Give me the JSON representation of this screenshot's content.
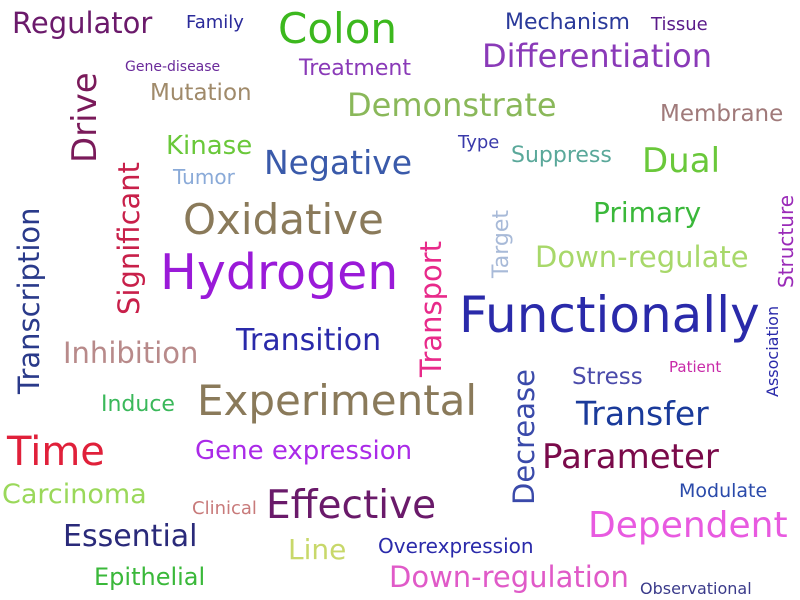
{
  "words": [
    {
      "text": "Regulator",
      "color": "#6b1a6b"
    },
    {
      "text": "Family",
      "color": "#2a2a9a"
    },
    {
      "text": "Colon",
      "color": "#3cb81e"
    },
    {
      "text": "Mechanism",
      "color": "#2a3a9a"
    },
    {
      "text": "Tissue",
      "color": "#5a1a8a"
    },
    {
      "text": "Differentiation",
      "color": "#8a3ab8"
    },
    {
      "text": "Gene-disease",
      "color": "#6a2a9a"
    },
    {
      "text": "Treatment",
      "color": "#8a3ab8"
    },
    {
      "text": "Mutation",
      "color": "#a08a6a"
    },
    {
      "text": "Demonstrate",
      "color": "#8ab85a"
    },
    {
      "text": "Membrane",
      "color": "#a07a7a"
    },
    {
      "text": "Drive",
      "color": "#7a1a5a"
    },
    {
      "text": "Kinase",
      "color": "#6ac83a"
    },
    {
      "text": "Type",
      "color": "#3a3aaa"
    },
    {
      "text": "Suppress",
      "color": "#5aa89a"
    },
    {
      "text": "Dual",
      "color": "#6ac83a"
    },
    {
      "text": "Negative",
      "color": "#3a5aaa"
    },
    {
      "text": "Tumor",
      "color": "#8aaad8"
    },
    {
      "text": "Significant",
      "color": "#c8204a"
    },
    {
      "text": "Target",
      "color": "#a8bad8"
    },
    {
      "text": "Primary",
      "color": "#3ab83a"
    },
    {
      "text": "Structure",
      "color": "#9a2ab8"
    },
    {
      "text": "Transcription",
      "color": "#2a3a8a"
    },
    {
      "text": "Oxidative",
      "color": "#8a7a5a"
    },
    {
      "text": "Down-regulate",
      "color": "#a8d86a"
    },
    {
      "text": "Hydrogen",
      "color": "#9a1ad8"
    },
    {
      "text": "Transport",
      "color": "#e82a8a"
    },
    {
      "text": "Functionally",
      "color": "#2a2aaa"
    },
    {
      "text": "Association",
      "color": "#2a2aaa"
    },
    {
      "text": "Inhibition",
      "color": "#b88a8a"
    },
    {
      "text": "Transition",
      "color": "#2a2aaa"
    },
    {
      "text": "Patient",
      "color": "#c82aa8"
    },
    {
      "text": "Stress",
      "color": "#4a4aaa"
    },
    {
      "text": "Decrease",
      "color": "#3a4aaa"
    },
    {
      "text": "Induce",
      "color": "#3ab85a"
    },
    {
      "text": "Experimental",
      "color": "#8a7a5a"
    },
    {
      "text": "Transfer",
      "color": "#1a3a9a"
    },
    {
      "text": "Time",
      "color": "#e0203a"
    },
    {
      "text": "Gene expression",
      "color": "#aa2ae8"
    },
    {
      "text": "Parameter",
      "color": "#7a0a4a"
    },
    {
      "text": "Carcinoma",
      "color": "#9ad85a"
    },
    {
      "text": "Clinical",
      "color": "#c87a7a"
    },
    {
      "text": "Effective",
      "color": "#6a1a6a"
    },
    {
      "text": "Modulate",
      "color": "#2a4aaa"
    },
    {
      "text": "Essential",
      "color": "#2a2a7a"
    },
    {
      "text": "Dependent",
      "color": "#e85ae0"
    },
    {
      "text": "Line",
      "color": "#c8d86a"
    },
    {
      "text": "Overexpression",
      "color": "#2a2aaa"
    },
    {
      "text": "Epithelial",
      "color": "#3ab83a"
    },
    {
      "text": "Down-regulation",
      "color": "#e05ac8"
    },
    {
      "text": "Observational",
      "color": "#3a3a8a"
    }
  ]
}
